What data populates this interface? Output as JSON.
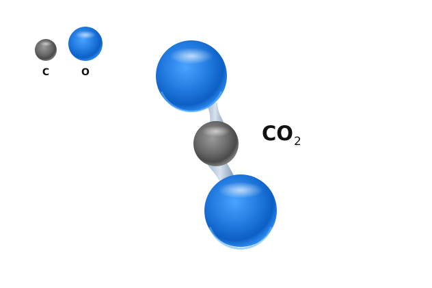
{
  "legend": [
    {
      "symbol": "C",
      "element": "carbon"
    },
    {
      "symbol": "O",
      "element": "oxygen"
    }
  ],
  "molecule": {
    "formula_main": "CO",
    "formula_subscript": "2",
    "atoms": [
      "oxygen",
      "carbon",
      "oxygen"
    ]
  },
  "colors": {
    "carbon": "#6b6b6b",
    "oxygen": "#1f78dd",
    "bond": "#8fa6bd",
    "label": "#111111"
  }
}
